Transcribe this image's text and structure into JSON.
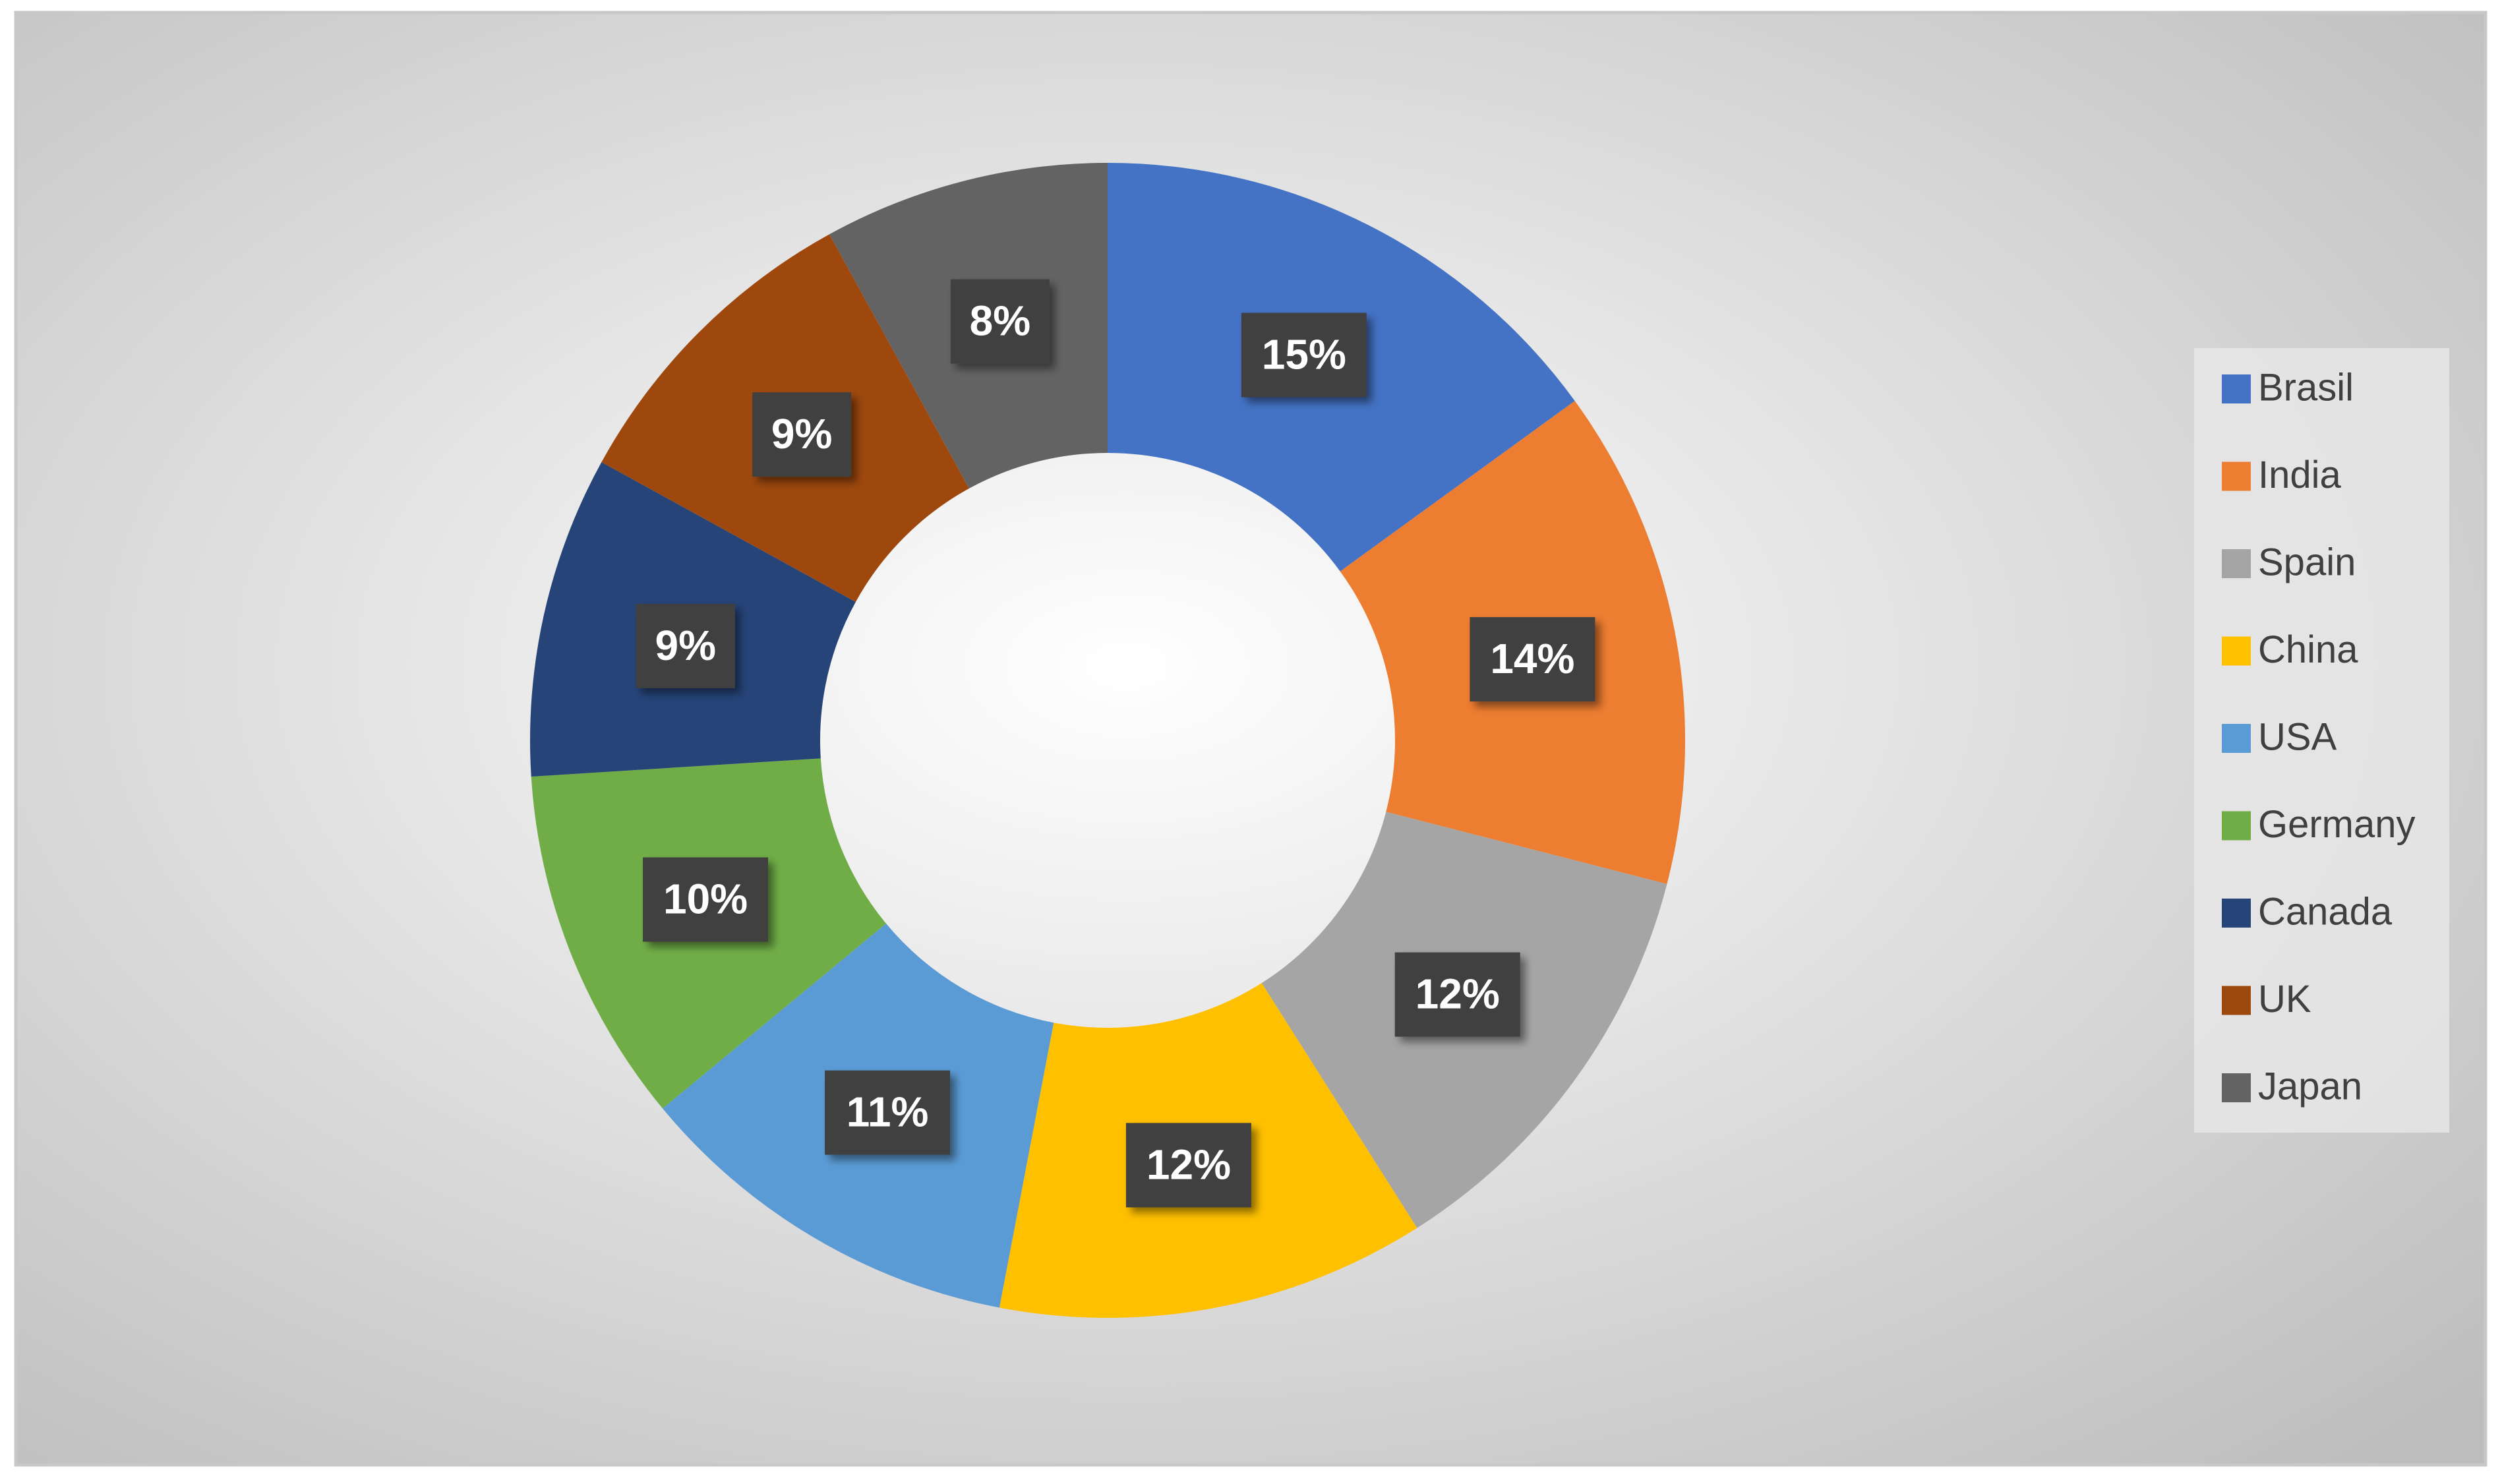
{
  "chart_data": {
    "type": "donut",
    "categories": [
      "Brasil",
      "India",
      "Spain",
      "China",
      "USA",
      "Germany",
      "Canada",
      "UK",
      "Japan"
    ],
    "values": [
      15,
      14,
      12,
      12,
      11,
      10,
      9,
      9,
      8
    ],
    "value_labels": [
      "15%",
      "14%",
      "12%",
      "12%",
      "11%",
      "10%",
      "9%",
      "9%",
      "8%"
    ],
    "colors": [
      "#4472c4",
      "#ed7d31",
      "#a5a5a5",
      "#ffc000",
      "#5b9bd5",
      "#70ad47",
      "#264478",
      "#9e480e",
      "#636363"
    ],
    "legend": "right"
  }
}
